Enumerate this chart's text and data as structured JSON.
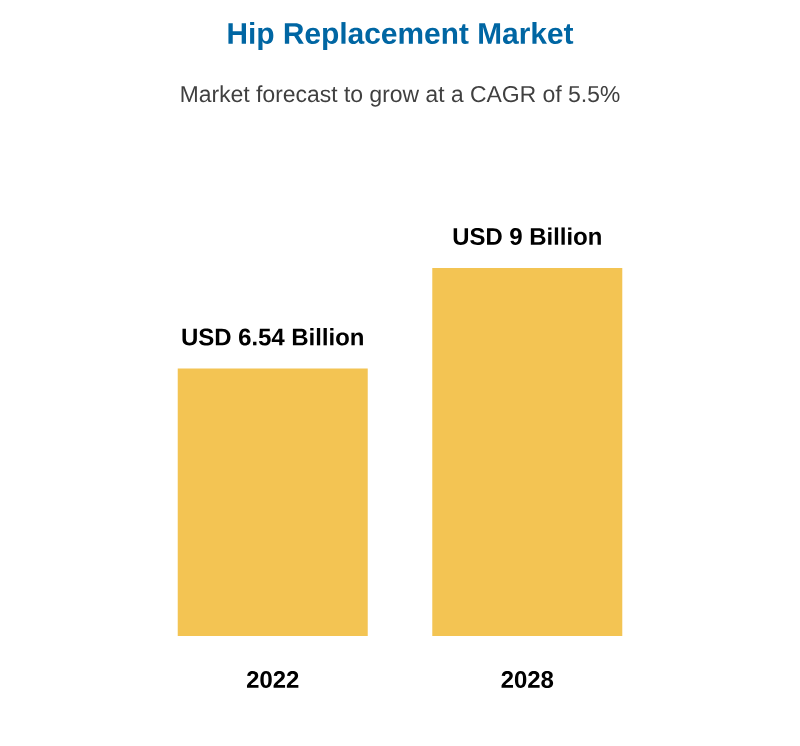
{
  "chart_data": {
    "type": "bar",
    "title": "Hip Replacement Market",
    "subtitle": "Market forecast to grow at a CAGR of 5.5%",
    "categories": [
      "2022",
      "2028"
    ],
    "series": [
      {
        "color": "#f3c453",
        "values": [
          6.54,
          9
        ],
        "value_labels": [
          "USD 6.54 Billion",
          "USD 9 Billion"
        ]
      }
    ]
  }
}
